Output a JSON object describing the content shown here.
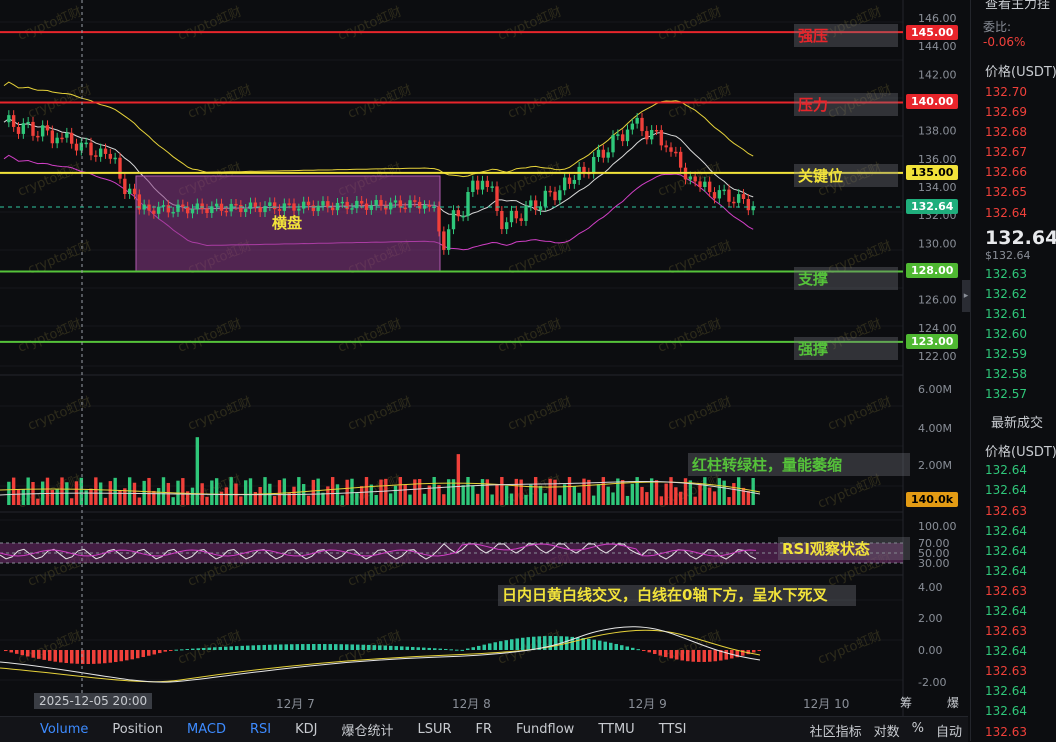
{
  "chart_data": {
    "type": "candlestick",
    "price_axis": {
      "min": 122,
      "max": 146,
      "ticks": [
        "146.00",
        "144.00",
        "142.00",
        "140.00",
        "138.00",
        "136.00",
        "134.00",
        "132.00",
        "130.00",
        "128.00",
        "126.00",
        "124.00",
        "122.00"
      ]
    },
    "volume_axis": {
      "ticks": [
        "6.00M",
        "4.00M",
        "2.00M"
      ]
    },
    "rsi_axis": {
      "ticks": [
        "100.00",
        "70.00",
        "50.00",
        "30.00"
      ]
    },
    "macd_axis": {
      "ticks": [
        "4.00",
        "2.00",
        "0.00",
        "-2.00"
      ]
    },
    "x_ticks": [
      "12月 7",
      "12月 8",
      "12月 9",
      "12月 10"
    ],
    "crosshair_time": "2025-12-05 20:00",
    "current_price": "132.64",
    "current_volume": "140.0k",
    "levels": [
      {
        "price": 145,
        "price_label": "145.00",
        "label": "强压",
        "color": "#e8252b"
      },
      {
        "price": 140,
        "price_label": "140.00",
        "label": "压力",
        "color": "#e8252b"
      },
      {
        "price": 135,
        "price_label": "135.00",
        "label": "关键位",
        "color": "#f2e33a"
      },
      {
        "price": 128,
        "price_label": "128.00",
        "label": "支撑",
        "color": "#55c23a"
      },
      {
        "price": 123,
        "price_label": "123.00",
        "label": "强撑",
        "color": "#55c23a"
      }
    ],
    "range_box_label": "横盘",
    "annotations": {
      "volume": "红柱转绿柱，量能萎缩",
      "rsi": "RSI观察状态",
      "macd": "日内日黄白线交叉，白线在0轴下方，呈水下死叉"
    },
    "watermark": "crypto虹财"
  },
  "bottom_bar": {
    "indicators": [
      "Volume",
      "Position",
      "MACD",
      "RSI",
      "KDJ",
      "爆仓统计",
      "LSUR",
      "FR",
      "Fundflow",
      "TTMU",
      "TTSI"
    ],
    "active": [
      "Volume",
      "MACD",
      "RSI"
    ],
    "right": [
      "社区指标",
      "对数",
      "%",
      "自动"
    ]
  },
  "side_panel": {
    "top_label": "查看主力挂",
    "ratio_label": "委比:",
    "ratio_value": "-0.06%",
    "price_header": "价格(USDT)",
    "asks": [
      "132.70",
      "132.69",
      "132.68",
      "132.67",
      "132.66",
      "132.65",
      "132.64"
    ],
    "last_price": "132.64",
    "last_price_sub": "$132.64",
    "bids": [
      "132.63",
      "132.62",
      "132.61",
      "132.60",
      "132.59",
      "132.58",
      "132.57"
    ],
    "trades_title": "最新成交",
    "trades_header": "价格(USDT)",
    "trades": [
      {
        "p": "132.64",
        "c": "green"
      },
      {
        "p": "132.64",
        "c": "green"
      },
      {
        "p": "132.63",
        "c": "red"
      },
      {
        "p": "132.64",
        "c": "green"
      },
      {
        "p": "132.64",
        "c": "green"
      },
      {
        "p": "132.64",
        "c": "green"
      },
      {
        "p": "132.63",
        "c": "red"
      },
      {
        "p": "132.64",
        "c": "green"
      },
      {
        "p": "132.63",
        "c": "red"
      },
      {
        "p": "132.64",
        "c": "green"
      },
      {
        "p": "132.63",
        "c": "red"
      },
      {
        "p": "132.64",
        "c": "green"
      },
      {
        "p": "132.64",
        "c": "green"
      },
      {
        "p": "132.63",
        "c": "red"
      }
    ],
    "corner_labels": [
      "筹",
      "爆"
    ]
  }
}
